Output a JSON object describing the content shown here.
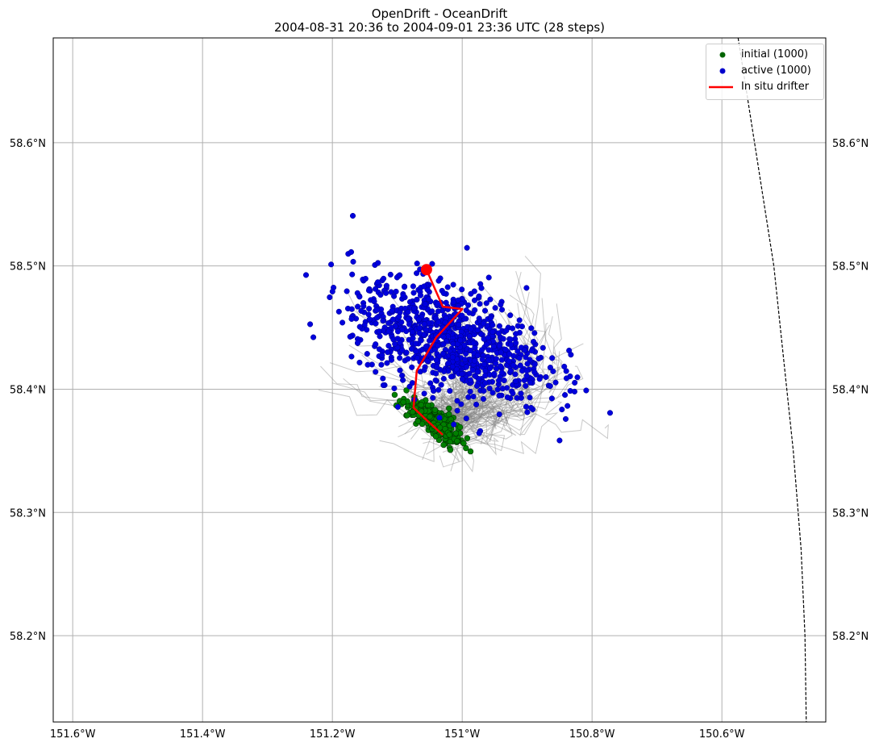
{
  "title": {
    "line1": "OpenDrift - OceanDrift",
    "line2": "2004-08-31 20:36 to 2004-09-01 23:36 UTC (28 steps)"
  },
  "legend": {
    "placement": "top-right",
    "items": [
      {
        "label": "initial (1000)",
        "color": "#006400",
        "kind": "dot"
      },
      {
        "label": "active (1000)",
        "color": "#0000cc",
        "kind": "dot"
      },
      {
        "label": "In situ drifter",
        "color": "#ff0000",
        "kind": "line"
      }
    ]
  },
  "chart_data": {
    "type": "scatter",
    "projection": "map",
    "grid": true,
    "xlim": [
      -151.63,
      -150.44
    ],
    "ylim": [
      58.13,
      58.685
    ],
    "x_ticks": [
      {
        "value": -151.6,
        "label": "151.6°W"
      },
      {
        "value": -151.4,
        "label": "151.4°W"
      },
      {
        "value": -151.2,
        "label": "151.2°W"
      },
      {
        "value": -151.0,
        "label": "151°W"
      },
      {
        "value": -150.8,
        "label": "150.8°W"
      },
      {
        "value": -150.6,
        "label": "150.6°W"
      }
    ],
    "y_ticks": [
      {
        "value": 58.2,
        "label": "58.2°N"
      },
      {
        "value": 58.3,
        "label": "58.3°N"
      },
      {
        "value": 58.4,
        "label": "58.4°N"
      },
      {
        "value": 58.5,
        "label": "58.5°N"
      },
      {
        "value": 58.6,
        "label": "58.6°N"
      }
    ],
    "series": [
      {
        "name": "initial (1000)",
        "kind": "scatter",
        "color": "#008000",
        "count": 1000,
        "center": [
          -151.04,
          58.373
        ],
        "spread": [
          0.025,
          0.01
        ]
      },
      {
        "name": "active (1000)",
        "kind": "scatter",
        "color": "#0000dd",
        "count": 1000,
        "center": [
          -151.02,
          58.44
        ],
        "spread": [
          0.075,
          0.022
        ]
      },
      {
        "name": "In situ drifter",
        "kind": "line",
        "color": "#ff0000",
        "x": [
          -151.03,
          -151.055,
          -151.075,
          -151.07,
          -151.04,
          -151.0,
          -151.03,
          -151.045,
          -151.055
        ],
        "y": [
          58.363,
          58.375,
          58.385,
          58.415,
          58.442,
          58.465,
          58.467,
          58.485,
          58.497
        ],
        "end_marker": [
          -151.055,
          58.497
        ]
      }
    ],
    "trajectories": {
      "color": "#888888",
      "count": 120
    },
    "coastline_dashed": {
      "x": [
        -150.575,
        -150.52,
        -150.49,
        -150.478,
        -150.472,
        -150.47
      ],
      "y": [
        58.685,
        58.5,
        58.35,
        58.27,
        58.2,
        58.13
      ]
    }
  }
}
